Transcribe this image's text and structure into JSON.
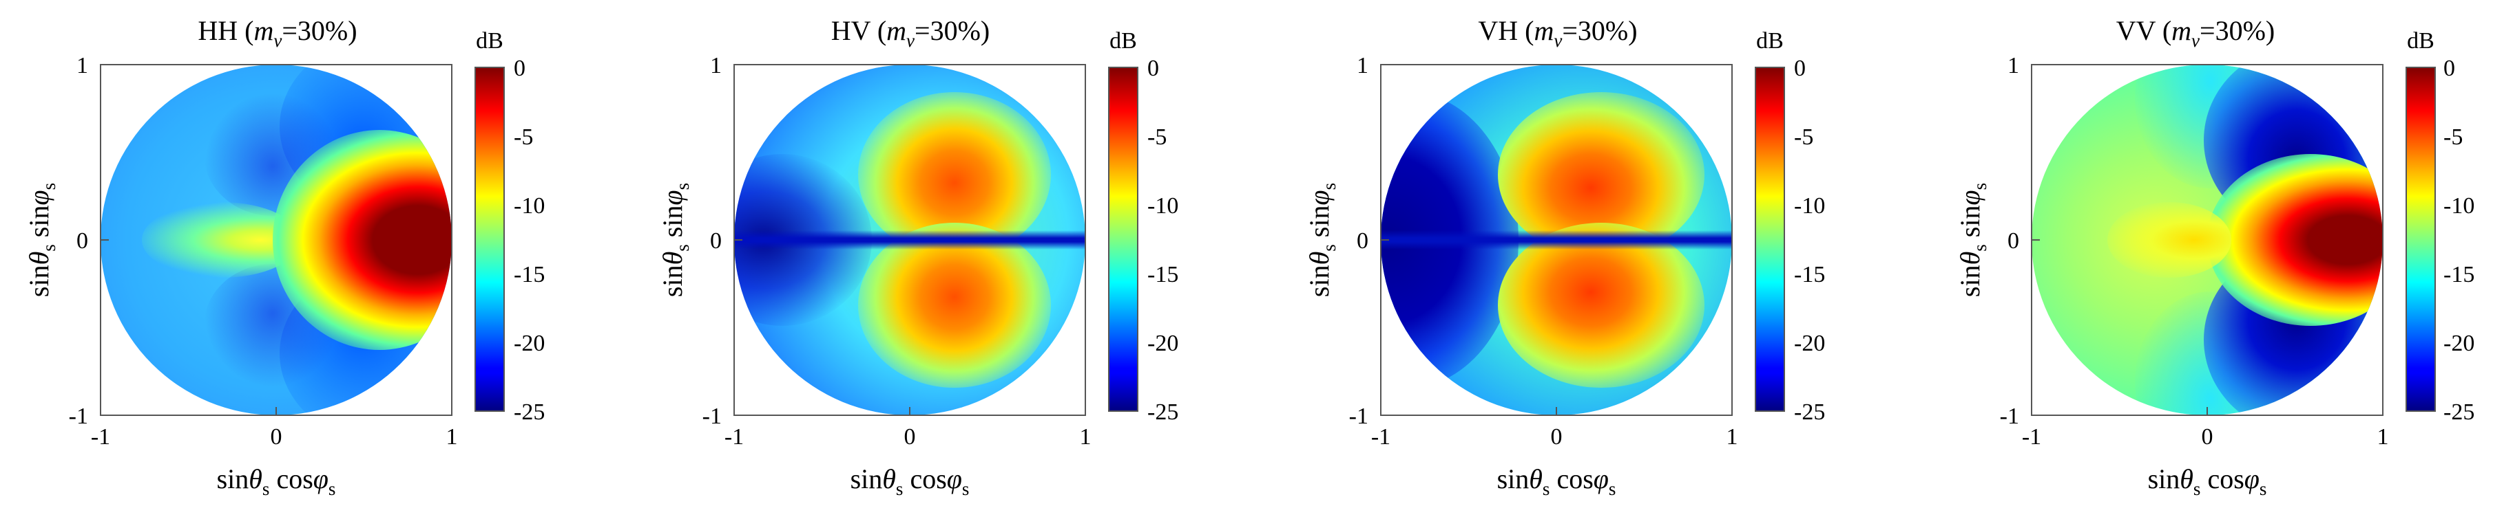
{
  "chart_data": [
    {
      "type": "heatmap",
      "title_prefix": "HH (",
      "title_var": "m",
      "title_sub": "v",
      "title_suffix": "=30%)",
      "xlabel": {
        "a": "sin",
        "theta": "θ",
        "s1": "s",
        "b": " cos",
        "phi": "φ",
        "s2": "s"
      },
      "ylabel": {
        "a": "sin",
        "theta": "θ",
        "s1": "s",
        "b": " sin",
        "phi": "φ",
        "s2": "s"
      },
      "xlim": [
        -1,
        1
      ],
      "ylim": [
        -1,
        1
      ],
      "xticks": [
        "-1",
        "0",
        "1"
      ],
      "yticks": [
        "1",
        "0",
        "-1"
      ],
      "colorbar": {
        "unit": "dB",
        "range": [
          -25,
          0
        ],
        "ticks": [
          "0",
          "-5",
          "-10",
          "-15",
          "-20",
          "-25"
        ]
      },
      "pattern": {
        "peak_x": 0.6,
        "peak_db": 0,
        "background_db": -17,
        "left_lobe_db": -10,
        "description": "strong forward lobe on +x axis, weak backward lobe"
      }
    },
    {
      "type": "heatmap",
      "title_prefix": "HV (",
      "title_var": "m",
      "title_sub": "v",
      "title_suffix": "=30%)",
      "xlabel": {
        "a": "sin",
        "theta": "θ",
        "s1": "s",
        "b": " cos",
        "phi": "φ",
        "s2": "s"
      },
      "ylabel": {
        "a": "sin",
        "theta": "θ",
        "s1": "s",
        "b": " sin",
        "phi": "φ",
        "s2": "s"
      },
      "xlim": [
        -1,
        1
      ],
      "ylim": [
        -1,
        1
      ],
      "xticks": [
        "-1",
        "0",
        "1"
      ],
      "yticks": [
        "1",
        "0",
        "-1"
      ],
      "colorbar": {
        "unit": "dB",
        "range": [
          -25,
          0
        ],
        "ticks": [
          "0",
          "-5",
          "-10",
          "-15",
          "-20",
          "-25"
        ]
      },
      "pattern": {
        "peak_db": -5,
        "null_axis": "phi=0",
        "description": "two lobes above and below the x axis, null along x axis"
      }
    },
    {
      "type": "heatmap",
      "title_prefix": "VH (",
      "title_var": "m",
      "title_sub": "v",
      "title_suffix": "=30%)",
      "xlabel": {
        "a": "sin",
        "theta": "θ",
        "s1": "s",
        "b": " cos",
        "phi": "φ",
        "s2": "s"
      },
      "ylabel": {
        "a": "sin",
        "theta": "θ",
        "s1": "s",
        "b": " sin",
        "phi": "φ",
        "s2": "s"
      },
      "xlim": [
        -1,
        1
      ],
      "ylim": [
        -1,
        1
      ],
      "xticks": [
        "-1",
        "0",
        "1"
      ],
      "yticks": [
        "1",
        "0",
        "-1"
      ],
      "colorbar": {
        "unit": "dB",
        "range": [
          -25,
          0
        ],
        "ticks": [
          "0",
          "-5",
          "-10",
          "-15",
          "-20",
          "-25"
        ]
      },
      "pattern": {
        "peak_db": -4,
        "null_axis": "phi=0",
        "description": "two lobes above and below the x axis, dark region at left edge"
      }
    },
    {
      "type": "heatmap",
      "title_prefix": "VV (",
      "title_var": "m",
      "title_sub": "v",
      "title_suffix": "=30%)",
      "xlabel": {
        "a": "sin",
        "theta": "θ",
        "s1": "s",
        "b": " cos",
        "phi": "φ",
        "s2": "s"
      },
      "ylabel": {
        "a": "sin",
        "theta": "θ",
        "s1": "s",
        "b": " sin",
        "phi": "φ",
        "s2": "s"
      },
      "xlim": [
        -1,
        1
      ],
      "ylim": [
        -1,
        1
      ],
      "xticks": [
        "-1",
        "0",
        "1"
      ],
      "yticks": [
        "1",
        "0",
        "-1"
      ],
      "colorbar": {
        "unit": "dB",
        "range": [
          -25,
          0
        ],
        "ticks": [
          "0",
          "-5",
          "-10",
          "-15",
          "-20",
          "-25"
        ]
      },
      "pattern": {
        "peak_x": 0.6,
        "peak_db": 0,
        "background_db": -10,
        "null_db": -22,
        "description": "strong forward lobe with dark nulls flanking it"
      }
    }
  ]
}
